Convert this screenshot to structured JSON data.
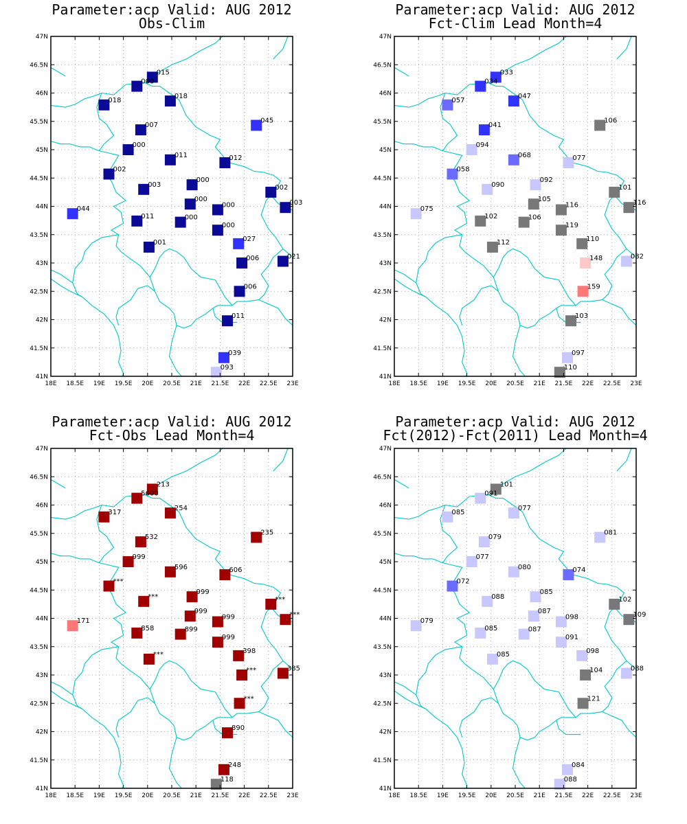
{
  "colors": {
    "dark_blue": "#0a0a96",
    "blue": "#3232ff",
    "med_blue": "#6b6bff",
    "light_blue": "#c8c8ff",
    "gray": "#787878",
    "dark_red": "#a00000",
    "light_red": "#ff7878",
    "pale_red": "#ffc8c8",
    "border": "#00c8c8",
    "grid": "#969696"
  },
  "axes": {
    "x_ticks": [
      "18E",
      "18.5E",
      "19E",
      "19.5E",
      "20E",
      "20.5E",
      "21E",
      "21.5E",
      "22E",
      "22.5E",
      "23E"
    ],
    "y_ticks": [
      "41N",
      "41.5N",
      "42N",
      "42.5N",
      "43N",
      "43.5N",
      "44N",
      "44.5N",
      "45N",
      "45.5N",
      "46N",
      "46.5N",
      "47N"
    ],
    "lon_range": [
      18,
      23
    ],
    "lat_range": [
      41,
      47
    ]
  },
  "panels": [
    {
      "title1": "Parameter:acp Valid: AUG 2012",
      "title2": "Obs-Clim",
      "stations": [
        {
          "lon": 20.1,
          "lat": 46.28,
          "label": "015",
          "color": "dark_blue"
        },
        {
          "lon": 19.78,
          "lat": 46.12,
          "label": "000",
          "color": "dark_blue"
        },
        {
          "lon": 20.47,
          "lat": 45.86,
          "label": "018",
          "color": "dark_blue"
        },
        {
          "lon": 19.1,
          "lat": 45.79,
          "label": "018",
          "color": "dark_blue"
        },
        {
          "lon": 22.25,
          "lat": 45.43,
          "label": "045",
          "color": "blue"
        },
        {
          "lon": 19.86,
          "lat": 45.35,
          "label": "007",
          "color": "dark_blue"
        },
        {
          "lon": 19.6,
          "lat": 45.0,
          "label": "000",
          "color": "dark_blue"
        },
        {
          "lon": 20.47,
          "lat": 44.82,
          "label": "011",
          "color": "dark_blue"
        },
        {
          "lon": 21.6,
          "lat": 44.77,
          "label": "012",
          "color": "dark_blue"
        },
        {
          "lon": 19.2,
          "lat": 44.57,
          "label": "002",
          "color": "dark_blue"
        },
        {
          "lon": 20.92,
          "lat": 44.38,
          "label": "000",
          "color": "dark_blue"
        },
        {
          "lon": 19.92,
          "lat": 44.3,
          "label": "003",
          "color": "dark_blue"
        },
        {
          "lon": 22.55,
          "lat": 44.25,
          "label": "002",
          "color": "dark_blue"
        },
        {
          "lon": 20.88,
          "lat": 44.04,
          "label": "000",
          "color": "dark_blue"
        },
        {
          "lon": 21.45,
          "lat": 43.94,
          "label": "000",
          "color": "dark_blue"
        },
        {
          "lon": 22.85,
          "lat": 43.98,
          "label": "003",
          "color": "dark_blue"
        },
        {
          "lon": 18.45,
          "lat": 43.87,
          "label": "044",
          "color": "blue"
        },
        {
          "lon": 19.78,
          "lat": 43.74,
          "label": "011",
          "color": "dark_blue"
        },
        {
          "lon": 20.68,
          "lat": 43.72,
          "label": "000",
          "color": "dark_blue"
        },
        {
          "lon": 21.45,
          "lat": 43.58,
          "label": "000",
          "color": "dark_blue"
        },
        {
          "lon": 21.88,
          "lat": 43.34,
          "label": "027",
          "color": "blue"
        },
        {
          "lon": 20.03,
          "lat": 43.28,
          "label": "001",
          "color": "dark_blue"
        },
        {
          "lon": 21.95,
          "lat": 43.0,
          "label": "006",
          "color": "dark_blue"
        },
        {
          "lon": 22.8,
          "lat": 43.03,
          "label": "021",
          "color": "dark_blue"
        },
        {
          "lon": 21.9,
          "lat": 42.5,
          "label": "006",
          "color": "dark_blue"
        },
        {
          "lon": 21.65,
          "lat": 41.98,
          "label": "011",
          "color": "dark_blue"
        },
        {
          "lon": 21.58,
          "lat": 41.33,
          "label": "039",
          "color": "blue"
        },
        {
          "lon": 21.42,
          "lat": 41.07,
          "label": "093",
          "color": "light_blue"
        }
      ]
    },
    {
      "title1": "Parameter:acp Valid: AUG 2012",
      "title2": "Fct-Clim Lead Month=4",
      "stations": [
        {
          "lon": 20.1,
          "lat": 46.28,
          "label": "033",
          "color": "blue"
        },
        {
          "lon": 19.78,
          "lat": 46.12,
          "label": "034",
          "color": "blue"
        },
        {
          "lon": 20.47,
          "lat": 45.86,
          "label": "047",
          "color": "blue"
        },
        {
          "lon": 19.1,
          "lat": 45.79,
          "label": "057",
          "color": "med_blue"
        },
        {
          "lon": 22.25,
          "lat": 45.43,
          "label": "106",
          "color": "gray"
        },
        {
          "lon": 19.86,
          "lat": 45.35,
          "label": "041",
          "color": "blue"
        },
        {
          "lon": 19.6,
          "lat": 45.0,
          "label": "094",
          "color": "light_blue"
        },
        {
          "lon": 20.47,
          "lat": 44.82,
          "label": "068",
          "color": "med_blue"
        },
        {
          "lon": 21.6,
          "lat": 44.77,
          "label": "077",
          "color": "light_blue"
        },
        {
          "lon": 19.2,
          "lat": 44.57,
          "label": "058",
          "color": "med_blue"
        },
        {
          "lon": 20.92,
          "lat": 44.38,
          "label": "092",
          "color": "light_blue"
        },
        {
          "lon": 19.92,
          "lat": 44.3,
          "label": "090",
          "color": "light_blue"
        },
        {
          "lon": 22.55,
          "lat": 44.25,
          "label": "101",
          "color": "gray"
        },
        {
          "lon": 20.88,
          "lat": 44.04,
          "label": "105",
          "color": "gray"
        },
        {
          "lon": 21.45,
          "lat": 43.94,
          "label": "116",
          "color": "gray"
        },
        {
          "lon": 22.85,
          "lat": 43.98,
          "label": "116",
          "color": "gray"
        },
        {
          "lon": 18.45,
          "lat": 43.87,
          "label": "075",
          "color": "light_blue"
        },
        {
          "lon": 19.78,
          "lat": 43.74,
          "label": "102",
          "color": "gray"
        },
        {
          "lon": 20.68,
          "lat": 43.72,
          "label": "106",
          "color": "gray"
        },
        {
          "lon": 21.45,
          "lat": 43.58,
          "label": "119",
          "color": "gray"
        },
        {
          "lon": 21.88,
          "lat": 43.34,
          "label": "110",
          "color": "gray"
        },
        {
          "lon": 20.03,
          "lat": 43.28,
          "label": "112",
          "color": "gray"
        },
        {
          "lon": 21.95,
          "lat": 43.0,
          "label": "148",
          "color": "pale_red"
        },
        {
          "lon": 22.8,
          "lat": 43.03,
          "label": "082",
          "color": "light_blue"
        },
        {
          "lon": 21.9,
          "lat": 42.5,
          "label": "159",
          "color": "light_red"
        },
        {
          "lon": 21.65,
          "lat": 41.98,
          "label": "103",
          "color": "gray"
        },
        {
          "lon": 21.58,
          "lat": 41.33,
          "label": "097",
          "color": "light_blue"
        },
        {
          "lon": 21.42,
          "lat": 41.07,
          "label": "110",
          "color": "gray"
        }
      ]
    },
    {
      "title1": "Parameter:acp Valid: AUG 2012",
      "title2": "Fct-Obs Lead Month=4",
      "stations": [
        {
          "lon": 20.1,
          "lat": 46.28,
          "label": "213",
          "color": "dark_red"
        },
        {
          "lon": 19.78,
          "lat": 46.12,
          "label": "5600",
          "color": "dark_red"
        },
        {
          "lon": 20.47,
          "lat": 45.86,
          "label": "254",
          "color": "dark_red"
        },
        {
          "lon": 19.1,
          "lat": 45.79,
          "label": "317",
          "color": "dark_red"
        },
        {
          "lon": 22.25,
          "lat": 45.43,
          "label": "235",
          "color": "dark_red"
        },
        {
          "lon": 19.86,
          "lat": 45.35,
          "label": "532",
          "color": "dark_red"
        },
        {
          "lon": 19.6,
          "lat": 45.0,
          "label": "999",
          "color": "dark_red"
        },
        {
          "lon": 20.47,
          "lat": 44.82,
          "label": "596",
          "color": "dark_red"
        },
        {
          "lon": 21.6,
          "lat": 44.77,
          "label": "606",
          "color": "dark_red"
        },
        {
          "lon": 19.2,
          "lat": 44.57,
          "label": "***",
          "color": "dark_red"
        },
        {
          "lon": 20.92,
          "lat": 44.38,
          "label": "999",
          "color": "dark_red"
        },
        {
          "lon": 19.92,
          "lat": 44.3,
          "label": "***",
          "color": "dark_red"
        },
        {
          "lon": 22.55,
          "lat": 44.25,
          "label": "***",
          "color": "dark_red"
        },
        {
          "lon": 20.88,
          "lat": 44.04,
          "label": "999",
          "color": "dark_red"
        },
        {
          "lon": 21.45,
          "lat": 43.94,
          "label": "999",
          "color": "dark_red"
        },
        {
          "lon": 22.85,
          "lat": 43.98,
          "label": "***",
          "color": "dark_red"
        },
        {
          "lon": 18.45,
          "lat": 43.87,
          "label": "171",
          "color": "light_red"
        },
        {
          "lon": 19.78,
          "lat": 43.74,
          "label": "858",
          "color": "dark_red"
        },
        {
          "lon": 20.68,
          "lat": 43.72,
          "label": "899",
          "color": "dark_red"
        },
        {
          "lon": 21.45,
          "lat": 43.58,
          "label": "999",
          "color": "dark_red"
        },
        {
          "lon": 21.88,
          "lat": 43.34,
          "label": "398",
          "color": "dark_red"
        },
        {
          "lon": 20.03,
          "lat": 43.28,
          "label": "***",
          "color": "dark_red"
        },
        {
          "lon": 21.95,
          "lat": 43.0,
          "label": "***",
          "color": "dark_red"
        },
        {
          "lon": 22.8,
          "lat": 43.03,
          "label": "385",
          "color": "dark_red"
        },
        {
          "lon": 21.9,
          "lat": 42.5,
          "label": "***",
          "color": "dark_red"
        },
        {
          "lon": 21.65,
          "lat": 41.98,
          "label": "890",
          "color": "dark_red"
        },
        {
          "lon": 21.58,
          "lat": 41.33,
          "label": "248",
          "color": "dark_red"
        },
        {
          "lon": 21.42,
          "lat": 41.07,
          "label": "118",
          "color": "gray"
        }
      ]
    },
    {
      "title1": "Parameter:acp Valid: AUG 2012",
      "title2": "Fct(2012)-Fct(2011) Lead Month=4",
      "stations": [
        {
          "lon": 20.1,
          "lat": 46.28,
          "label": "101",
          "color": "gray"
        },
        {
          "lon": 19.78,
          "lat": 46.12,
          "label": "091",
          "color": "light_blue"
        },
        {
          "lon": 20.47,
          "lat": 45.86,
          "label": "077",
          "color": "light_blue"
        },
        {
          "lon": 19.1,
          "lat": 45.79,
          "label": "085",
          "color": "light_blue"
        },
        {
          "lon": 22.25,
          "lat": 45.43,
          "label": "081",
          "color": "light_blue"
        },
        {
          "lon": 19.86,
          "lat": 45.35,
          "label": "079",
          "color": "light_blue"
        },
        {
          "lon": 19.6,
          "lat": 45.0,
          "label": "077",
          "color": "light_blue"
        },
        {
          "lon": 20.47,
          "lat": 44.82,
          "label": "080",
          "color": "light_blue"
        },
        {
          "lon": 21.6,
          "lat": 44.77,
          "label": "074",
          "color": "med_blue"
        },
        {
          "lon": 19.2,
          "lat": 44.57,
          "label": "072",
          "color": "med_blue"
        },
        {
          "lon": 20.92,
          "lat": 44.38,
          "label": "085",
          "color": "light_blue"
        },
        {
          "lon": 19.92,
          "lat": 44.3,
          "label": "088",
          "color": "light_blue"
        },
        {
          "lon": 22.55,
          "lat": 44.25,
          "label": "102",
          "color": "gray"
        },
        {
          "lon": 20.88,
          "lat": 44.04,
          "label": "087",
          "color": "light_blue"
        },
        {
          "lon": 21.45,
          "lat": 43.94,
          "label": "098",
          "color": "light_blue"
        },
        {
          "lon": 22.85,
          "lat": 43.98,
          "label": "109",
          "color": "gray"
        },
        {
          "lon": 18.45,
          "lat": 43.87,
          "label": "079",
          "color": "light_blue"
        },
        {
          "lon": 19.78,
          "lat": 43.74,
          "label": "085",
          "color": "light_blue"
        },
        {
          "lon": 20.68,
          "lat": 43.72,
          "label": "087",
          "color": "light_blue"
        },
        {
          "lon": 21.45,
          "lat": 43.58,
          "label": "091",
          "color": "light_blue"
        },
        {
          "lon": 21.88,
          "lat": 43.34,
          "label": "098",
          "color": "light_blue"
        },
        {
          "lon": 20.03,
          "lat": 43.28,
          "label": "085",
          "color": "light_blue"
        },
        {
          "lon": 21.95,
          "lat": 43.0,
          "label": "104",
          "color": "gray"
        },
        {
          "lon": 22.8,
          "lat": 43.03,
          "label": "088",
          "color": "light_blue"
        },
        {
          "lon": 21.9,
          "lat": 42.5,
          "label": "121",
          "color": "gray"
        },
        {
          "lon": 21.58,
          "lat": 41.33,
          "label": "084",
          "color": "light_blue"
        },
        {
          "lon": 21.42,
          "lat": 41.07,
          "label": "088",
          "color": "light_blue"
        }
      ]
    }
  ]
}
